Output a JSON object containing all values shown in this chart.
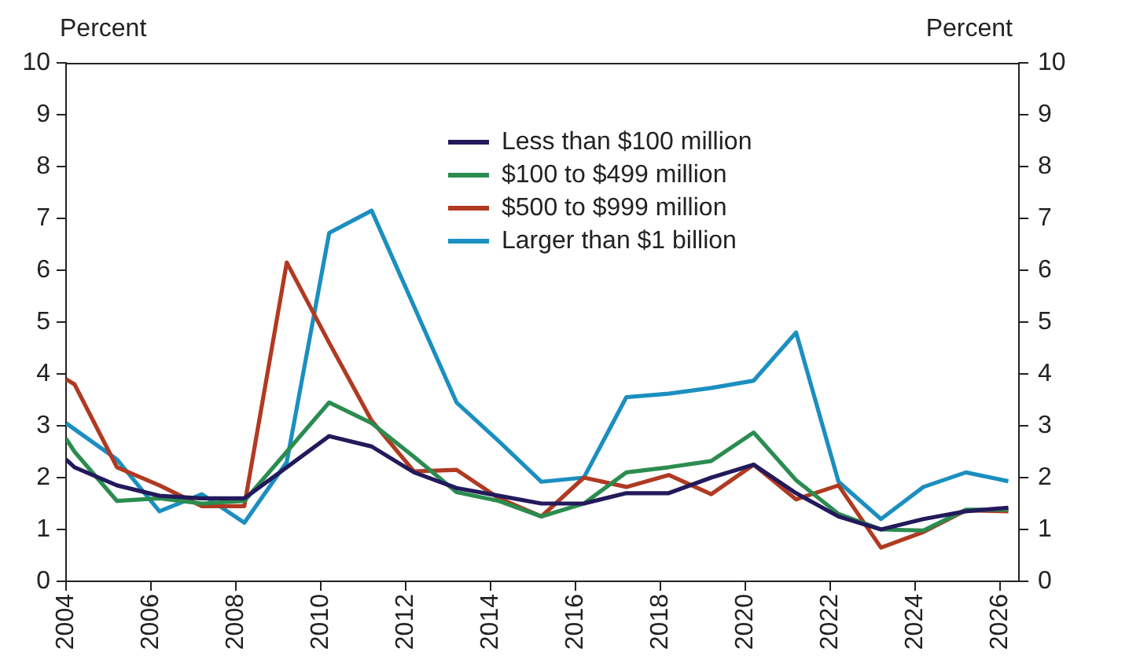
{
  "chart_data": {
    "type": "line",
    "ylabel": "Percent",
    "y2label": "Percent",
    "xlim": [
      2004,
      2026.45
    ],
    "xticks": [
      2004,
      2006,
      2008,
      2010,
      2012,
      2014,
      2016,
      2018,
      2020,
      2022,
      2024,
      2026
    ],
    "ylim": [
      0,
      10
    ],
    "yticks": [
      0,
      1,
      2,
      3,
      4,
      5,
      6,
      7,
      8,
      9,
      10
    ],
    "y2lim": [
      0,
      10
    ],
    "y2ticks": [
      0,
      1,
      2,
      3,
      4,
      5,
      6,
      7,
      8,
      9,
      10
    ],
    "grid": false,
    "legend": "top",
    "marker": "none",
    "line_style": "solid",
    "series": [
      {
        "name": "Less than $100 million",
        "color": "#231a5c",
        "x": [
          2004,
          2004.2,
          2005.2,
          2006.2,
          2007.2,
          2008.2,
          2009.2,
          2010.2,
          2011.2,
          2012.2,
          2013.2,
          2014.2,
          2015.2,
          2016.2,
          2017.2,
          2018.2,
          2019.2,
          2020.2,
          2021.2,
          2022.2,
          2023.2,
          2024.2,
          2025.2,
          2026.2
        ],
        "values": [
          2.35,
          2.2,
          1.85,
          1.65,
          1.6,
          1.6,
          2.2,
          2.8,
          2.6,
          2.1,
          1.8,
          1.65,
          1.5,
          1.5,
          1.7,
          1.7,
          2.0,
          2.25,
          1.7,
          1.25,
          1.0,
          1.2,
          1.35,
          1.42
        ]
      },
      {
        "name": "$100 to $499 million",
        "color": "#2b8c4f",
        "x": [
          2004,
          2004.2,
          2005.2,
          2006.2,
          2007.2,
          2008.2,
          2009.2,
          2010.2,
          2011.2,
          2012.2,
          2013.2,
          2014.2,
          2015.2,
          2016.2,
          2017.2,
          2018.2,
          2019.2,
          2020.2,
          2021.2,
          2022.2,
          2023.2,
          2024.2,
          2025.2,
          2026.2
        ],
        "values": [
          2.75,
          2.5,
          1.55,
          1.6,
          1.5,
          1.55,
          2.5,
          3.45,
          3.05,
          2.4,
          1.72,
          1.55,
          1.25,
          1.5,
          2.1,
          2.2,
          2.32,
          2.87,
          1.95,
          1.3,
          1.0,
          0.98,
          1.38,
          1.38
        ]
      },
      {
        "name": "$500 to $999 million",
        "color": "#b03a22",
        "x": [
          2004,
          2004.2,
          2005.2,
          2006.2,
          2007.2,
          2008.2,
          2009.2,
          2010.2,
          2011.2,
          2012.2,
          2013.2,
          2014.2,
          2015.2,
          2016.2,
          2017.2,
          2018.2,
          2019.2,
          2020.2,
          2021.2,
          2022.2,
          2023.2,
          2024.2,
          2025.2,
          2026.2
        ],
        "values": [
          3.9,
          3.8,
          2.2,
          1.85,
          1.45,
          1.45,
          6.15,
          4.6,
          3.1,
          2.12,
          2.15,
          1.6,
          1.25,
          2.0,
          1.82,
          2.05,
          1.68,
          2.25,
          1.58,
          1.85,
          0.65,
          0.95,
          1.37,
          1.35
        ]
      },
      {
        "name": "Larger than $1 billion",
        "color": "#1b8fc0",
        "x": [
          2004,
          2005.2,
          2006.2,
          2007.2,
          2008.2,
          2009.2,
          2010.2,
          2011.2,
          2012.2,
          2013.2,
          2014.2,
          2015.2,
          2016.2,
          2017.2,
          2018.2,
          2019.2,
          2020.2,
          2021.2,
          2022.2,
          2023.2,
          2024.2,
          2025.2,
          2026.2
        ],
        "values": [
          3.05,
          2.35,
          1.35,
          1.68,
          1.13,
          2.3,
          6.72,
          7.15,
          5.3,
          3.45,
          2.7,
          1.92,
          2.0,
          3.55,
          3.62,
          3.73,
          3.87,
          4.8,
          1.92,
          1.2,
          1.82,
          2.1,
          1.93
        ]
      }
    ]
  }
}
